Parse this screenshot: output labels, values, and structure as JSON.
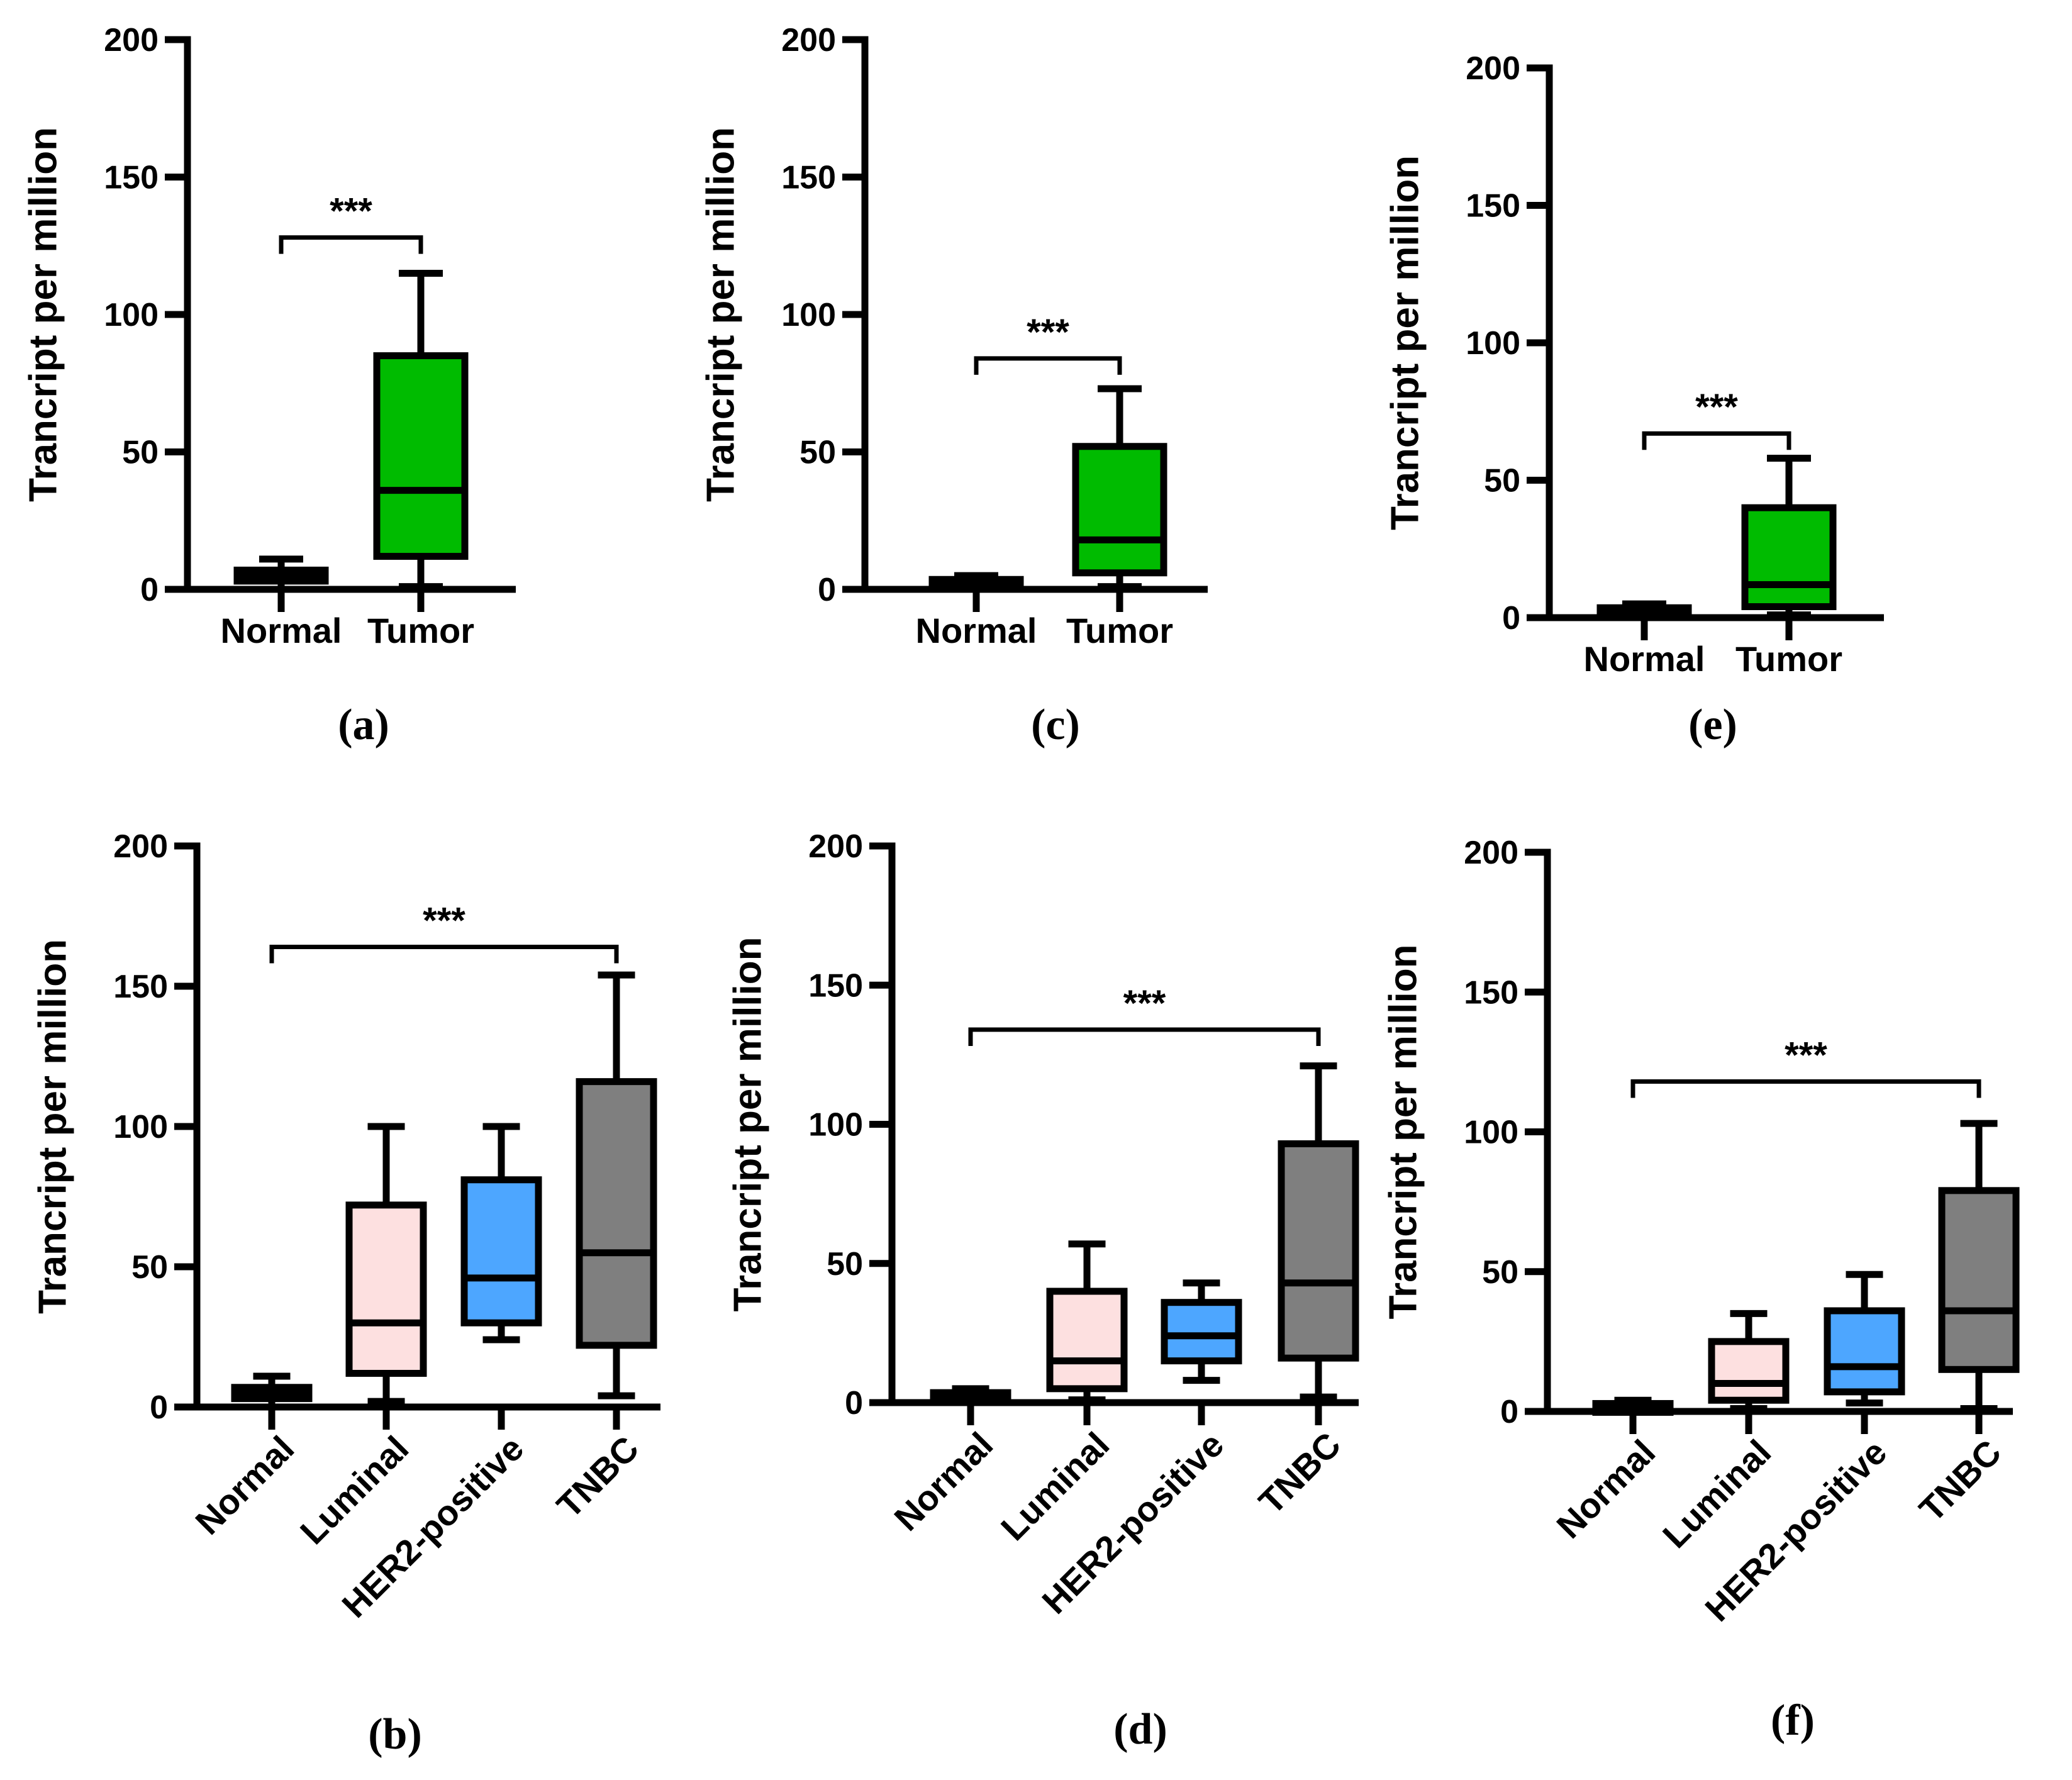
{
  "chart_data": [
    {
      "panel": "(a)",
      "type": "box",
      "ylabel": "Trancript per million",
      "ylim": [
        0,
        200
      ],
      "yticks": [
        "0",
        "50",
        "100",
        "150",
        "200"
      ],
      "categories": [
        "Normal",
        "Tumor"
      ],
      "boxes": [
        {
          "name": "Normal",
          "min": 0,
          "q1": 3,
          "median": 5,
          "q3": 7,
          "max": 11,
          "color": "#000000"
        },
        {
          "name": "Tumor",
          "min": 1,
          "q1": 12,
          "median": 36,
          "q3": 85,
          "max": 115,
          "color": "#00bb00"
        }
      ],
      "significance": {
        "label": "***",
        "from": "Normal",
        "to": "Tumor",
        "y": 128
      }
    },
    {
      "panel": "(c)",
      "type": "box",
      "ylabel": "Trancript per million",
      "ylim": [
        0,
        200
      ],
      "yticks": [
        "0",
        "50",
        "100",
        "150",
        "200"
      ],
      "categories": [
        "Normal",
        "Tumor"
      ],
      "boxes": [
        {
          "name": "Normal",
          "min": 0,
          "q1": 1,
          "median": 2,
          "q3": 3,
          "max": 5,
          "color": "#000000"
        },
        {
          "name": "Tumor",
          "min": 1,
          "q1": 6,
          "median": 18,
          "q3": 52,
          "max": 73,
          "color": "#00bb00"
        }
      ],
      "significance": {
        "label": "***",
        "from": "Normal",
        "to": "Tumor",
        "y": 84
      }
    },
    {
      "panel": "(e)",
      "type": "box",
      "ylabel": "Trancript per million",
      "ylim": [
        0,
        200
      ],
      "yticks": [
        "0",
        "50",
        "100",
        "150",
        "200"
      ],
      "categories": [
        "Normal",
        "Tumor"
      ],
      "boxes": [
        {
          "name": "Normal",
          "min": 0,
          "q1": 1,
          "median": 2,
          "q3": 3,
          "max": 5,
          "color": "#000000"
        },
        {
          "name": "Tumor",
          "min": 1,
          "q1": 4,
          "median": 12,
          "q3": 40,
          "max": 58,
          "color": "#00bb00"
        }
      ],
      "significance": {
        "label": "***",
        "from": "Normal",
        "to": "Tumor",
        "y": 67
      }
    },
    {
      "panel": "(b)",
      "type": "box",
      "ylabel": "Trancript per million",
      "ylim": [
        0,
        200
      ],
      "yticks": [
        "0",
        "50",
        "100",
        "150",
        "200"
      ],
      "categories": [
        "Normal",
        "Luminal",
        "HER2-positive",
        "TNBC"
      ],
      "boxes": [
        {
          "name": "Normal",
          "min": 0,
          "q1": 3,
          "median": 5,
          "q3": 7,
          "max": 11,
          "color": "#000000"
        },
        {
          "name": "Luminal",
          "min": 2,
          "q1": 12,
          "median": 30,
          "q3": 72,
          "max": 100,
          "color": "#fde0e0"
        },
        {
          "name": "HER2-positive",
          "min": 24,
          "q1": 30,
          "median": 46,
          "q3": 81,
          "max": 100,
          "color": "#4da6ff"
        },
        {
          "name": "TNBC",
          "min": 4,
          "q1": 22,
          "median": 55,
          "q3": 116,
          "max": 154,
          "color": "#7f7f7f"
        }
      ],
      "significance": {
        "label": "***",
        "from": "Normal",
        "to": "TNBC",
        "y": 164
      }
    },
    {
      "panel": "(d)",
      "type": "box",
      "ylabel": "Trancript per million",
      "ylim": [
        0,
        200
      ],
      "yticks": [
        "0",
        "50",
        "100",
        "150",
        "200"
      ],
      "categories": [
        "Normal",
        "Luminal",
        "HER2-positive",
        "TNBC"
      ],
      "boxes": [
        {
          "name": "Normal",
          "min": 0,
          "q1": 1,
          "median": 2,
          "q3": 3,
          "max": 5,
          "color": "#000000"
        },
        {
          "name": "Luminal",
          "min": 1,
          "q1": 5,
          "median": 15,
          "q3": 40,
          "max": 57,
          "color": "#fde0e0"
        },
        {
          "name": "HER2-positive",
          "min": 8,
          "q1": 15,
          "median": 24,
          "q3": 36,
          "max": 43,
          "color": "#4da6ff"
        },
        {
          "name": "TNBC",
          "min": 2,
          "q1": 16,
          "median": 43,
          "q3": 93,
          "max": 121,
          "color": "#7f7f7f"
        }
      ],
      "significance": {
        "label": "***",
        "from": "Normal",
        "to": "TNBC",
        "y": 134
      }
    },
    {
      "panel": "(f)",
      "type": "box",
      "ylabel": "Trancript per million",
      "ylim": [
        0,
        200
      ],
      "yticks": [
        "0",
        "50",
        "100",
        "150",
        "200"
      ],
      "categories": [
        "Normal",
        "Luminal",
        "HER2-positive",
        "TNBC"
      ],
      "boxes": [
        {
          "name": "Normal",
          "min": 0,
          "q1": 0.5,
          "median": 1,
          "q3": 2,
          "max": 4,
          "color": "#000000"
        },
        {
          "name": "Luminal",
          "min": 1,
          "q1": 4,
          "median": 10,
          "q3": 25,
          "max": 35,
          "color": "#fde0e0"
        },
        {
          "name": "HER2-positive",
          "min": 3,
          "q1": 7,
          "median": 16,
          "q3": 36,
          "max": 49,
          "color": "#4da6ff"
        },
        {
          "name": "TNBC",
          "min": 1,
          "q1": 15,
          "median": 36,
          "q3": 79,
          "max": 103,
          "color": "#7f7f7f"
        }
      ],
      "significance": {
        "label": "***",
        "from": "Normal",
        "to": "TNBC",
        "y": 118
      }
    }
  ]
}
